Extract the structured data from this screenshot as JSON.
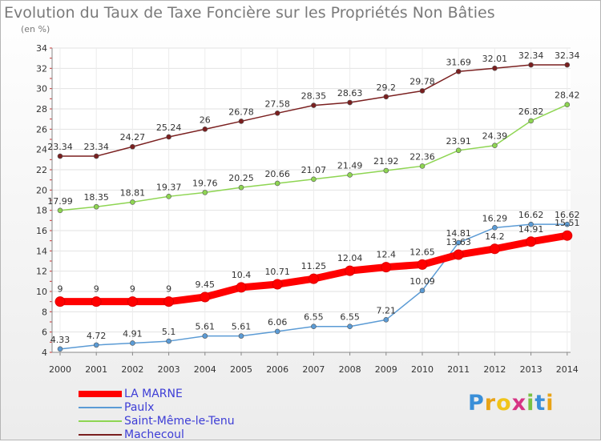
{
  "chart_data": {
    "type": "line",
    "title": "Evolution du Taux de Taxe Foncière sur les Propriétés Non Bâties",
    "subtitle": "(en %)",
    "x": [
      "2000",
      "2001",
      "2002",
      "2003",
      "2004",
      "2005",
      "2006",
      "2007",
      "2008",
      "2009",
      "2010",
      "2011",
      "2012",
      "2013",
      "2014"
    ],
    "ylim": [
      4,
      34
    ],
    "yticks": [
      4,
      6,
      8,
      10,
      12,
      14,
      16,
      18,
      20,
      22,
      24,
      26,
      28,
      30,
      32,
      34
    ],
    "grid": true,
    "legend_position": "bottom-left",
    "series": [
      {
        "name": "Machecoul",
        "color": "#7a1f1f",
        "values": [
          23.34,
          23.34,
          24.27,
          25.24,
          26,
          26.78,
          27.58,
          28.35,
          28.63,
          29.2,
          29.78,
          31.69,
          32.01,
          32.34,
          32.34
        ],
        "labels": [
          "23.34",
          "23.34",
          "24.27",
          "25.24",
          "26",
          "26.78",
          "27.58",
          "28.35",
          "28.63",
          "29.2",
          "29.78",
          "31.69",
          "32.01",
          "32.34",
          "32.34"
        ]
      },
      {
        "name": "Saint-Même-le-Tenu",
        "color": "#8ed552",
        "values": [
          17.99,
          18.35,
          18.81,
          19.37,
          19.76,
          20.25,
          20.66,
          21.07,
          21.49,
          21.92,
          22.36,
          23.91,
          24.39,
          26.82,
          28.42
        ],
        "labels": [
          "17.99",
          "18.35",
          "18.81",
          "19.37",
          "19.76",
          "20.25",
          "20.66",
          "21.07",
          "21.49",
          "21.92",
          "22.36",
          "23.91",
          "24.39",
          "26.82",
          "28.42"
        ]
      },
      {
        "name": "Paulx",
        "color": "#5b9bd5",
        "values": [
          4.33,
          4.72,
          4.91,
          5.1,
          5.61,
          5.61,
          6.06,
          6.55,
          6.55,
          7.21,
          10.09,
          14.81,
          16.29,
          16.62,
          16.62
        ],
        "labels": [
          "4.33",
          "4.72",
          "4.91",
          "5.1",
          "5.61",
          "5.61",
          "6.06",
          "6.55",
          "6.55",
          "7.21",
          "10.09",
          "14.81",
          "16.29",
          "16.62",
          "16.62"
        ]
      },
      {
        "name": "LA MARNE",
        "color": "#ff0000",
        "values": [
          9,
          9,
          9,
          9,
          9.45,
          10.4,
          10.71,
          11.25,
          12.04,
          12.4,
          12.65,
          13.63,
          14.2,
          14.91,
          15.51
        ],
        "labels": [
          "9",
          "9",
          "9",
          "9",
          "9.45",
          "10.4",
          "10.71",
          "11.25",
          "12.04",
          "12.4",
          "12.65",
          "13.63",
          "14.2",
          "14.91",
          "15.51"
        ]
      }
    ]
  },
  "legend": [
    {
      "name": "LA MARNE",
      "color": "#ff0000",
      "thick": true
    },
    {
      "name": "Paulx",
      "color": "#5b9bd5",
      "thick": false
    },
    {
      "name": "Saint-Même-le-Tenu",
      "color": "#8ed552",
      "thick": false
    },
    {
      "name": "Machecoul",
      "color": "#7a1f1f",
      "thick": false
    }
  ],
  "logo": {
    "text": "Proxiti",
    "letters": [
      "P",
      "r",
      "o",
      "x",
      "i",
      "t",
      "i"
    ],
    "colors": [
      "#3a8fd8",
      "#e8a317",
      "#f0c419",
      "#d63384",
      "#7ac143",
      "#3a8fd8",
      "#e8a317"
    ]
  }
}
